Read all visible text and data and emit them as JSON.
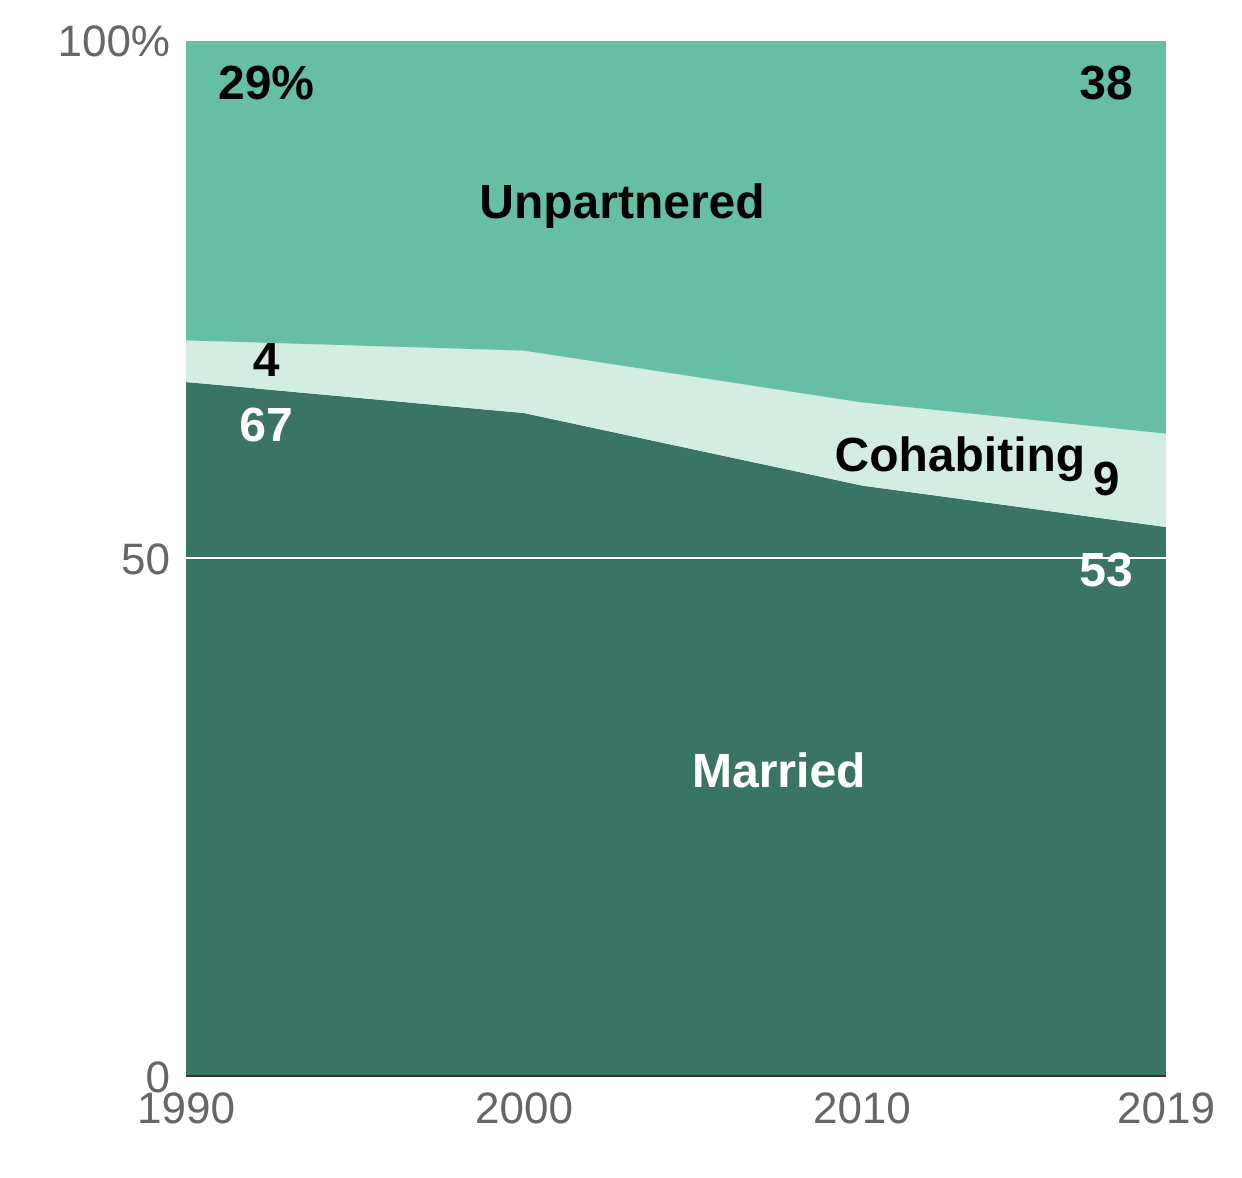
{
  "chart_data": {
    "type": "area",
    "stacked": true,
    "x": [
      1990,
      2000,
      2010,
      2019
    ],
    "series": [
      {
        "name": "Married",
        "color": "#3a7464",
        "values": [
          67,
          64,
          57,
          53
        ],
        "value_labels": [
          "67",
          null,
          null,
          "53"
        ]
      },
      {
        "name": "Cohabiting",
        "color": "#d4ede3",
        "values": [
          4,
          6,
          8,
          9
        ],
        "value_labels": [
          "4",
          null,
          null,
          "9"
        ]
      },
      {
        "name": "Unpartnered",
        "color": "#66bfa5",
        "values": [
          29,
          30,
          35,
          38
        ],
        "value_labels": [
          "29%",
          null,
          null,
          "38"
        ]
      }
    ],
    "xlim": [
      1990,
      2019
    ],
    "xticks": [
      1990,
      2000,
      2010,
      2019
    ],
    "ylim": [
      0,
      100
    ],
    "yticks": [
      0,
      50,
      {
        "value": 100,
        "label": "100%"
      }
    ],
    "grid": "y"
  }
}
